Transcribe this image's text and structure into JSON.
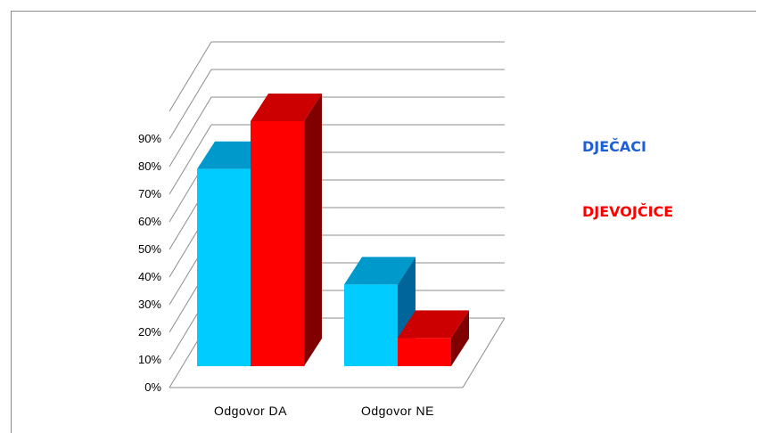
{
  "chart_data": {
    "type": "bar",
    "categories": [
      "Odgovor DA",
      "Odgovor NE"
    ],
    "series": [
      {
        "name": "DJEČACI",
        "values": [
          0.7,
          0.29
        ],
        "color": "#00ccff",
        "top_color": "#0099cc",
        "side_color": "#006699"
      },
      {
        "name": "DJEVOJČICE",
        "values": [
          0.87,
          0.1
        ],
        "color": "#ff0000",
        "top_color": "#cc0000",
        "side_color": "#800000"
      }
    ],
    "y_ticks": [
      "0%",
      "10%",
      "20%",
      "30%",
      "40%",
      "50%",
      "60%",
      "70%",
      "80%",
      "90%"
    ],
    "ylim": [
      0,
      1.1
    ],
    "grid": true,
    "legend_position": "right",
    "three_d": true
  }
}
